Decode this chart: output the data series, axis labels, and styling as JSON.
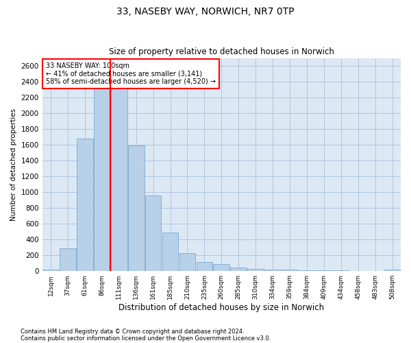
{
  "title_line1": "33, NASEBY WAY, NORWICH, NR7 0TP",
  "title_line2": "Size of property relative to detached houses in Norwich",
  "xlabel": "Distribution of detached houses by size in Norwich",
  "ylabel": "Number of detached properties",
  "footnote1": "Contains HM Land Registry data © Crown copyright and database right 2024.",
  "footnote2": "Contains public sector information licensed under the Open Government Licence v3.0.",
  "annotation_line1": "33 NASEBY WAY: 100sqm",
  "annotation_line2": "← 41% of detached houses are smaller (3,141)",
  "annotation_line3": "58% of semi-detached houses are larger (4,520) →",
  "bar_color": "#b8d0e8",
  "bar_edge_color": "#7aaad0",
  "vline_color": "red",
  "annotation_box_edge_color": "red",
  "background_color": "#ffffff",
  "axes_bg_color": "#dce9f5",
  "grid_color": "#b0c4de",
  "categories": [
    "12sqm",
    "37sqm",
    "61sqm",
    "86sqm",
    "111sqm",
    "136sqm",
    "161sqm",
    "185sqm",
    "210sqm",
    "235sqm",
    "260sqm",
    "285sqm",
    "310sqm",
    "334sqm",
    "359sqm",
    "384sqm",
    "409sqm",
    "434sqm",
    "458sqm",
    "483sqm",
    "508sqm"
  ],
  "values": [
    20,
    290,
    1680,
    2420,
    2400,
    1590,
    960,
    490,
    230,
    115,
    90,
    45,
    30,
    20,
    20,
    10,
    10,
    10,
    5,
    5,
    20
  ],
  "vline_position": 3.5,
  "ylim": [
    0,
    2700
  ],
  "yticks": [
    0,
    200,
    400,
    600,
    800,
    1000,
    1200,
    1400,
    1600,
    1800,
    2000,
    2200,
    2400,
    2600
  ]
}
